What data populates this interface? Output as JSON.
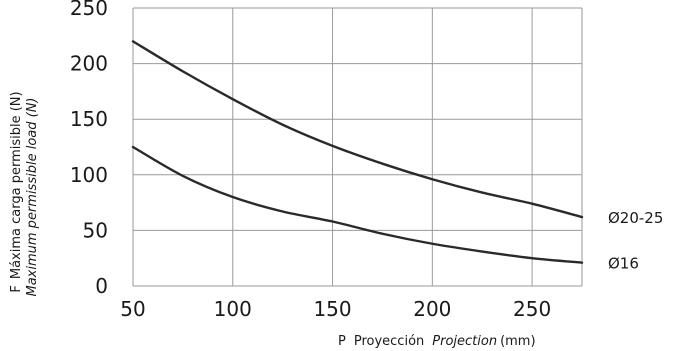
{
  "chart_data": {
    "type": "line",
    "xlim": [
      50,
      275
    ],
    "ylim": [
      0,
      250
    ],
    "x_ticks": [
      50,
      100,
      150,
      200,
      250
    ],
    "y_ticks": [
      0,
      50,
      100,
      150,
      200,
      250
    ],
    "grid": true,
    "series": [
      {
        "name": "Ø20-25",
        "x": [
          50,
          75,
          100,
          125,
          150,
          175,
          200,
          225,
          250,
          275
        ],
        "values": [
          220,
          193,
          168,
          145,
          126,
          110,
          96,
          84,
          74,
          62
        ]
      },
      {
        "name": "Ø16",
        "x": [
          50,
          75,
          100,
          125,
          150,
          175,
          200,
          225,
          250,
          275
        ],
        "values": [
          125,
          99,
          80,
          67,
          58,
          47,
          38,
          31,
          25,
          21
        ]
      }
    ],
    "ylabel": {
      "prefix": "F",
      "main": "Máxima carga permisible (N)",
      "italic": "Maximum permissible load (N)"
    },
    "xlabel": {
      "prefix": "P",
      "main": "Proyección",
      "italic": "Projection",
      "unit": "(mm)"
    }
  }
}
